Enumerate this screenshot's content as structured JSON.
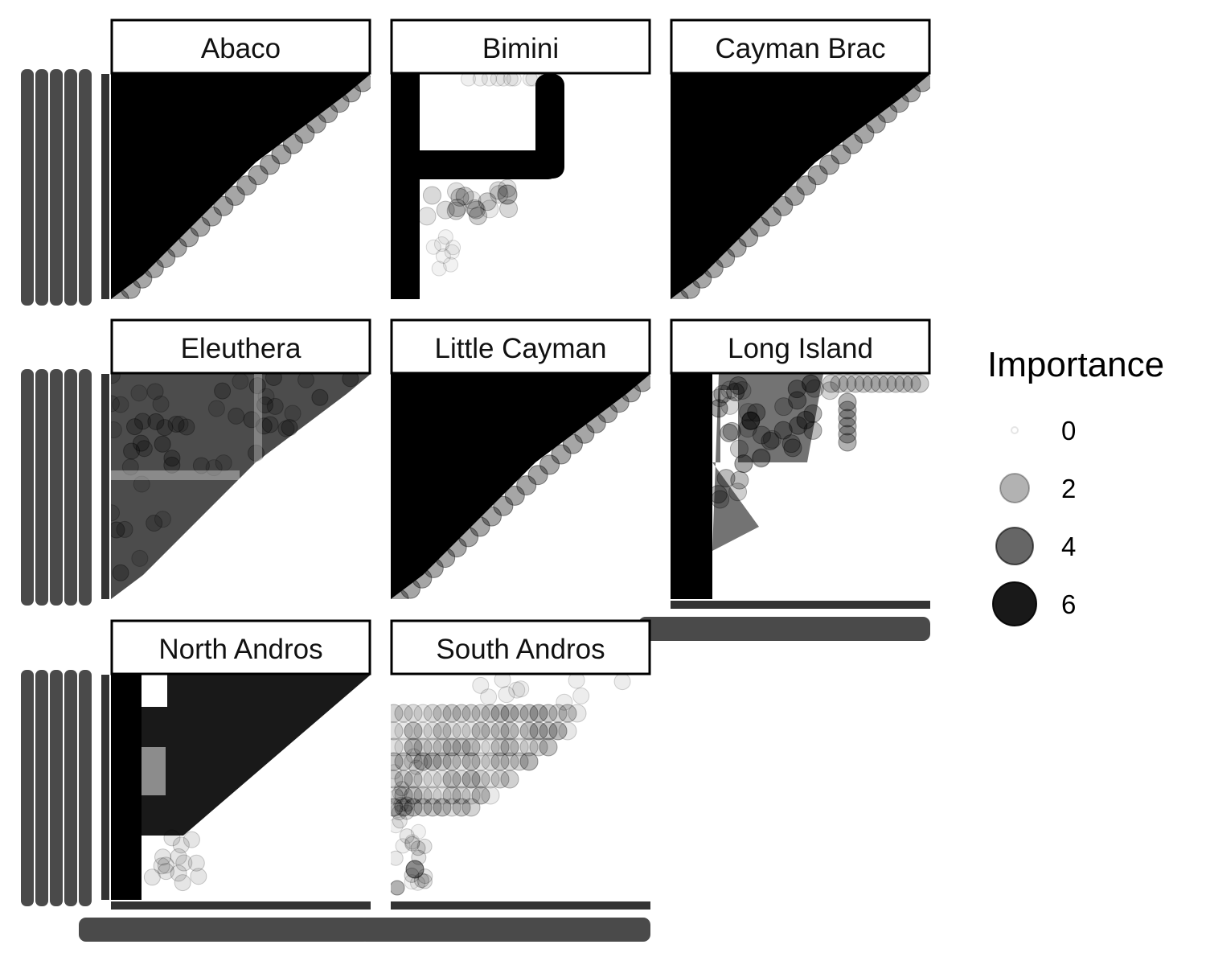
{
  "chart_data": {
    "type": "heatmap",
    "title": "",
    "xlabel": "",
    "ylabel": "",
    "note": "Faceted triangular pairwise matrix; point opacity/size encodes importance. Axis tick labels are overplotted and illegible.",
    "legend": {
      "title": "Importance",
      "placement": "right",
      "breaks": [
        0,
        2,
        4,
        6
      ]
    },
    "facets": [
      {
        "name": "Abaco",
        "pattern": "dense",
        "density": 1.0
      },
      {
        "name": "Bimini",
        "pattern": "bimini",
        "density": 0.25
      },
      {
        "name": "Cayman Brac",
        "pattern": "dense",
        "density": 0.98
      },
      {
        "name": "Eleuthera",
        "pattern": "eleuthera",
        "density": 0.8
      },
      {
        "name": "Little Cayman",
        "pattern": "dense",
        "density": 1.0
      },
      {
        "name": "Long Island",
        "pattern": "longisland",
        "density": 0.6
      },
      {
        "name": "North Andros",
        "pattern": "northandros",
        "density": 0.85
      },
      {
        "name": "South Andros",
        "pattern": "southandros",
        "density": 0.3
      }
    ]
  }
}
